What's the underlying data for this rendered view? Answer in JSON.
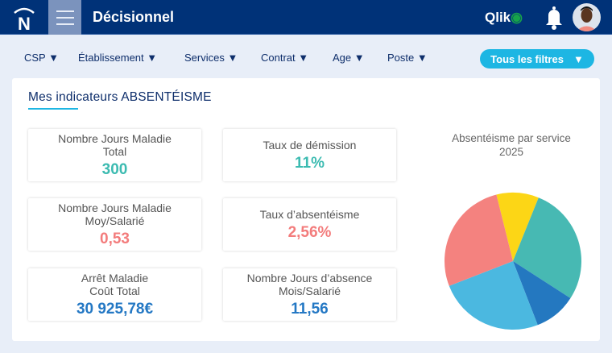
{
  "header": {
    "title": "Décisionnel",
    "brand": "Qlik",
    "logo_letter": "N"
  },
  "filters": [
    "CSP ▼",
    "Établissement ▼",
    "Services ▼",
    "Contrat ▼",
    "Age ▼",
    "Poste ▼"
  ],
  "all_filters": {
    "label": "Tous les filtres",
    "arrow": "▼"
  },
  "panel": {
    "title": "Mes indicateurs ABSENTÉISME"
  },
  "cards": [
    {
      "l1": "Nombre Jours Maladie",
      "l2": "Total",
      "value": "300",
      "color": "#3cbbb1"
    },
    {
      "l1": "Taux de démission",
      "l2": "",
      "value": "11%",
      "color": "#3cbbb1"
    },
    {
      "l1": "Nombre Jours Maladie",
      "l2": "Moy/Salarié",
      "value": "0,53",
      "color": "#f37c7c"
    },
    {
      "l1": "Taux d’absentéisme",
      "l2": "",
      "value": "2,56%",
      "color": "#f37c7c"
    },
    {
      "l1": "Arrêt Maladie",
      "l2": "Coût Total",
      "value": "30 925,78€",
      "color": "#2478c4"
    },
    {
      "l1": "Nombre Jours d’absence",
      "l2": "Mois/Salarié",
      "value": "11,56",
      "color": "#2478c4"
    }
  ],
  "chart_data": {
    "type": "pie",
    "title": "Absentéisme par service",
    "subtitle": "2025",
    "start_angle_deg": -14,
    "slices": [
      {
        "value": 10,
        "color": "#fcd616"
      },
      {
        "value": 28,
        "color": "#47b9b3"
      },
      {
        "value": 10,
        "color": "#2478c0"
      },
      {
        "value": 25,
        "color": "#4bb8e0"
      },
      {
        "value": 27,
        "color": "#f4827f"
      }
    ]
  }
}
